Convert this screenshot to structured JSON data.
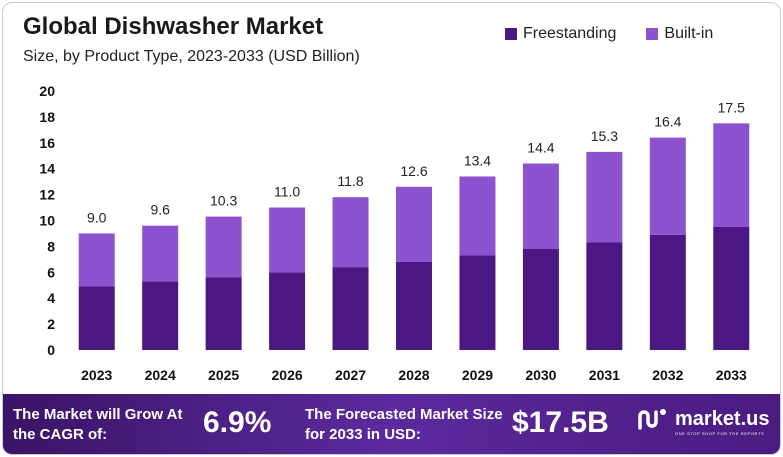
{
  "header": {
    "title": "Global Dishwasher Market",
    "subtitle": "Size, by Product Type, 2023-2033 (USD Billion)"
  },
  "legend": [
    {
      "label": "Freestanding",
      "color": "#4b1782"
    },
    {
      "label": "Built-in",
      "color": "#8c52d0"
    }
  ],
  "chart_data": {
    "type": "bar",
    "stacked": true,
    "title": "Global Dishwasher Market",
    "subtitle": "Size, by Product Type, 2023-2033 (USD Billion)",
    "categories": [
      "2023",
      "2024",
      "2025",
      "2026",
      "2027",
      "2028",
      "2029",
      "2030",
      "2031",
      "2032",
      "2033"
    ],
    "series": [
      {
        "name": "Freestanding",
        "color": "#4b1782",
        "values": [
          4.9,
          5.3,
          5.6,
          6.0,
          6.4,
          6.8,
          7.3,
          7.8,
          8.3,
          8.9,
          9.5
        ]
      },
      {
        "name": "Built-in",
        "color": "#8c52d0",
        "values": [
          4.1,
          4.3,
          4.7,
          5.0,
          5.4,
          5.8,
          6.1,
          6.6,
          7.0,
          7.5,
          8.0
        ]
      }
    ],
    "totals": [
      "9.0",
      "9.6",
      "10.3",
      "11.0",
      "11.8",
      "12.6",
      "13.4",
      "14.4",
      "15.3",
      "16.4",
      "17.5"
    ],
    "ylim": [
      0,
      20
    ],
    "yticks": [
      0,
      2,
      4,
      6,
      8,
      10,
      12,
      14,
      16,
      18,
      20
    ],
    "xlabel": "",
    "ylabel": "",
    "grid": false,
    "legend_position": "top-right"
  },
  "footer": {
    "cagr_text": "The Market will Grow At the CAGR of:",
    "cagr_value": "6.9%",
    "forecast_text": "The Forecasted Market Size for 2033 in USD:",
    "forecast_value": "$17.5B",
    "brand_name": "market.us",
    "brand_tagline": "ONE STOP SHOP FOR THE REPORTS"
  }
}
